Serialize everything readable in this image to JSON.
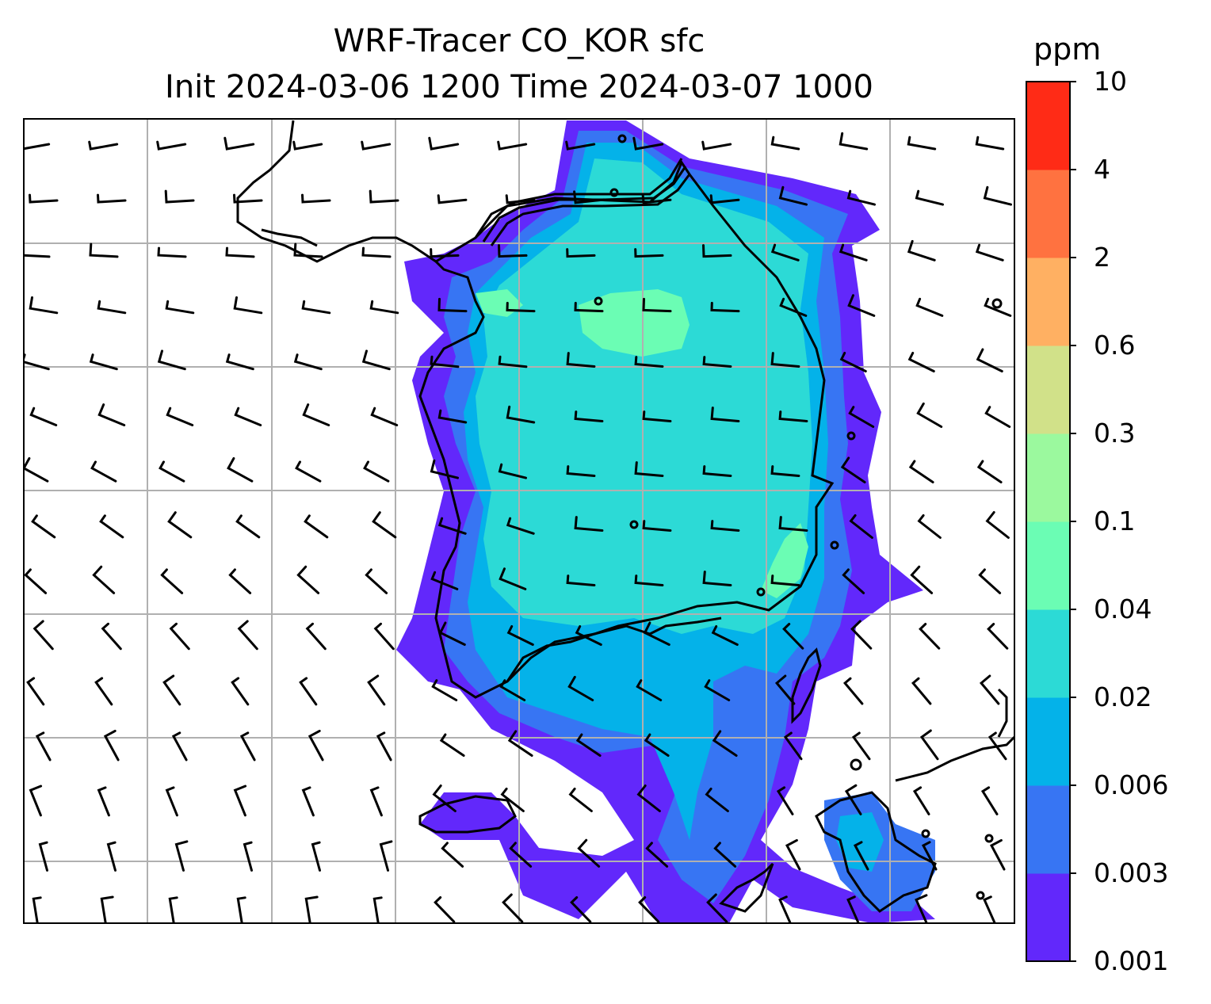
{
  "title": {
    "line1": "WRF-Tracer CO_KOR sfc",
    "line2": "Init 2024-03-06 1200 Time 2024-03-07 1000"
  },
  "colorbar": {
    "unit": "ppm",
    "levels": [
      "0.001",
      "0.003",
      "0.006",
      "0.02",
      "0.04",
      "0.1",
      "0.3",
      "0.6",
      "2",
      "4",
      "10"
    ],
    "colors": [
      "#6228fb",
      "#3775f3",
      "#04b2e9",
      "#2cdad6",
      "#6bfdb4",
      "#9bf99e",
      "#d1e189",
      "#ffb062",
      "#ff7240",
      "#ff2b16"
    ]
  },
  "map": {
    "land_outline_color": "#000000",
    "gridline_color": "#b0b0b0",
    "wind_barb_color": "#000000"
  }
}
